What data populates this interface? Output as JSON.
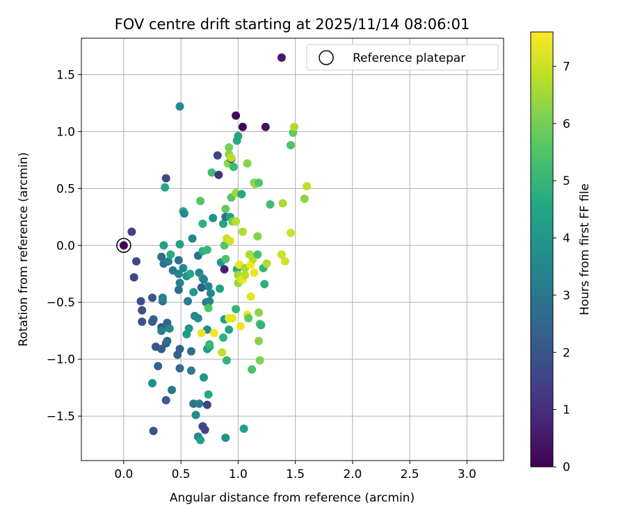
{
  "chart_data": {
    "type": "scatter",
    "title": "FOV centre drift starting at 2025/11/14 08:06:01",
    "xlabel": "Angular distance from reference (arcmin)",
    "ylabel": "Rotation from reference (arcmin)",
    "xlim": [
      -0.37,
      3.32
    ],
    "ylim": [
      -1.89,
      1.82
    ],
    "xticks": [
      0.0,
      0.5,
      1.0,
      1.5,
      2.0,
      2.5,
      3.0
    ],
    "xtick_labels": [
      "0.0",
      "0.5",
      "1.0",
      "1.5",
      "2.0",
      "2.5",
      "3.0"
    ],
    "yticks": [
      -1.5,
      -1.0,
      -0.5,
      0.0,
      0.5,
      1.0,
      1.5
    ],
    "ytick_labels": [
      "−1.5",
      "−1.0",
      "−0.5",
      "0.0",
      "0.5",
      "1.0",
      "1.5"
    ],
    "grid": true,
    "legend": {
      "position": "top-right",
      "entries": [
        "Reference platepar"
      ]
    },
    "reference_point": {
      "x": 0.0,
      "y": 0.0,
      "t": 0.0
    },
    "colorbar": {
      "label": "Hours from first FF file",
      "colormap": "viridis",
      "range": [
        0,
        7.6
      ],
      "ticks": [
        0,
        1,
        2,
        3,
        4,
        5,
        6,
        7
      ],
      "tick_labels": [
        "0",
        "1",
        "2",
        "3",
        "4",
        "5",
        "6",
        "7"
      ]
    },
    "points": [
      [
        1.38,
        1.65,
        0.5
      ],
      [
        0.98,
        1.14,
        0.1
      ],
      [
        1.04,
        1.04,
        0.0
      ],
      [
        1.24,
        1.04,
        0.3
      ],
      [
        0.49,
        1.22,
        3.6
      ],
      [
        0.37,
        0.59,
        1.7
      ],
      [
        0.07,
        0.12,
        1.4
      ],
      [
        0.11,
        -0.14,
        1.6
      ],
      [
        0.09,
        -0.28,
        1.6
      ],
      [
        0.15,
        -0.49,
        1.8
      ],
      [
        0.16,
        -0.57,
        1.8
      ],
      [
        0.16,
        -0.67,
        1.9
      ],
      [
        0.25,
        -0.46,
        2.0
      ],
      [
        0.25,
        -0.67,
        2.2
      ],
      [
        0.26,
        -0.65,
        2.3
      ],
      [
        0.28,
        -0.89,
        2.0
      ],
      [
        0.33,
        -0.72,
        2.0
      ],
      [
        0.33,
        -0.91,
        2.2
      ],
      [
        0.37,
        -0.72,
        2.4
      ],
      [
        0.37,
        -0.86,
        2.2
      ],
      [
        0.3,
        -1.06,
        2.4
      ],
      [
        0.37,
        -1.36,
        2.1
      ],
      [
        0.26,
        -1.63,
        2.0
      ],
      [
        0.42,
        -1.27,
        3.0
      ],
      [
        0.25,
        -1.21,
        3.7
      ],
      [
        0.33,
        -0.1,
        2.6
      ],
      [
        0.35,
        -0.16,
        2.9
      ],
      [
        0.34,
        -0.49,
        2.9
      ],
      [
        0.34,
        -0.46,
        3.3
      ],
      [
        0.33,
        -0.75,
        3.3
      ],
      [
        0.38,
        -0.84,
        2.6
      ],
      [
        0.38,
        -0.68,
        2.5
      ],
      [
        0.4,
        -0.73,
        3.5
      ],
      [
        0.36,
        0.51,
        4.5
      ],
      [
        0.35,
        0.0,
        4.3
      ],
      [
        0.39,
        -0.14,
        3.3
      ],
      [
        0.41,
        -0.08,
        4.7
      ],
      [
        0.43,
        -0.22,
        3.1
      ],
      [
        0.48,
        -0.13,
        2.8
      ],
      [
        0.48,
        -0.25,
        3.4
      ],
      [
        0.49,
        -0.33,
        3.3
      ],
      [
        0.48,
        -0.39,
        2.7
      ],
      [
        0.49,
        -0.91,
        2.3
      ],
      [
        0.47,
        -0.96,
        2.3
      ],
      [
        0.49,
        -1.08,
        2.6
      ],
      [
        0.49,
        0.01,
        4.3
      ],
      [
        0.52,
        0.3,
        4.6
      ],
      [
        0.53,
        0.28,
        3.6
      ],
      [
        0.52,
        -0.2,
        3.6
      ],
      [
        0.55,
        -0.27,
        3.9
      ],
      [
        0.56,
        -0.49,
        3.2
      ],
      [
        0.57,
        -0.73,
        4.0
      ],
      [
        0.55,
        -0.78,
        4.2
      ],
      [
        0.59,
        -0.93,
        2.7
      ],
      [
        0.59,
        -1.1,
        3.2
      ],
      [
        0.61,
        -1.39,
        3.0
      ],
      [
        0.63,
        -1.49,
        3.6
      ],
      [
        0.66,
        -1.39,
        3.2
      ],
      [
        0.65,
        -1.68,
        3.6
      ],
      [
        0.67,
        -1.71,
        4.3
      ],
      [
        0.6,
        0.06,
        3.5
      ],
      [
        0.58,
        -0.25,
        4.5
      ],
      [
        0.61,
        -0.41,
        4.1
      ],
      [
        0.62,
        -0.62,
        3.6
      ],
      [
        0.65,
        -0.09,
        2.8
      ],
      [
        0.66,
        -0.24,
        3.4
      ],
      [
        0.68,
        -0.37,
        2.2
      ],
      [
        0.69,
        -0.29,
        4.0
      ],
      [
        0.7,
        -0.3,
        3.3
      ],
      [
        0.69,
        -0.05,
        4.8
      ],
      [
        0.67,
        0.39,
        5.5
      ],
      [
        0.69,
        0.19,
        4.8
      ],
      [
        0.7,
        -1.16,
        4.0
      ],
      [
        0.73,
        -1.4,
        1.5
      ],
      [
        0.69,
        -1.59,
        1.5
      ],
      [
        0.71,
        -1.62,
        1.5
      ],
      [
        0.74,
        -1.31,
        4.6
      ],
      [
        0.73,
        -0.74,
        3.6
      ],
      [
        0.73,
        -0.91,
        4.1
      ],
      [
        0.72,
        -0.5,
        3.1
      ],
      [
        0.74,
        -0.36,
        3.4
      ],
      [
        0.76,
        -0.42,
        3.6
      ],
      [
        0.75,
        -0.49,
        3.4
      ],
      [
        0.74,
        -0.55,
        5.5
      ],
      [
        0.73,
        -0.04,
        5.1
      ],
      [
        0.75,
        -0.89,
        4.5
      ],
      [
        0.75,
        -0.87,
        5.1
      ],
      [
        0.77,
        0.64,
        5.2
      ],
      [
        0.78,
        0.24,
        3.8
      ],
      [
        0.82,
        0.79,
        1.5
      ],
      [
        0.83,
        0.62,
        1.1
      ],
      [
        0.84,
        -0.38,
        4.4
      ],
      [
        0.85,
        -0.15,
        4.0
      ],
      [
        0.88,
        -0.21,
        0.7
      ],
      [
        0.88,
        -0.65,
        4.2
      ],
      [
        0.87,
        -0.81,
        4.9
      ],
      [
        0.86,
        -0.94,
        6.9
      ],
      [
        0.87,
        0.19,
        4.6
      ],
      [
        0.89,
        0.25,
        2.8
      ],
      [
        0.89,
        0.32,
        5.8
      ],
      [
        0.88,
        0.0,
        5.5
      ],
      [
        0.89,
        -0.12,
        5.4
      ],
      [
        0.89,
        -1.69,
        3.8
      ],
      [
        0.9,
        -1.01,
        4.9
      ],
      [
        0.9,
        0.06,
        7.0
      ],
      [
        0.91,
        0.72,
        6.3
      ],
      [
        0.92,
        0.86,
        6.0
      ],
      [
        0.94,
        0.76,
        1.5
      ],
      [
        0.93,
        0.04,
        7.1
      ],
      [
        0.92,
        -0.64,
        7.3
      ],
      [
        0.92,
        -0.74,
        4.5
      ],
      [
        0.92,
        0.8,
        6.3
      ],
      [
        0.94,
        0.77,
        6.8
      ],
      [
        0.96,
        0.69,
        5.1
      ],
      [
        0.94,
        0.42,
        5.6
      ],
      [
        0.93,
        0.25,
        4.4
      ],
      [
        0.95,
        0.21,
        5.9
      ],
      [
        0.98,
        0.21,
        6.8
      ],
      [
        0.98,
        0.46,
        6.5
      ],
      [
        0.99,
        -0.21,
        4.7
      ],
      [
        0.98,
        -0.56,
        5.0
      ],
      [
        0.99,
        0.92,
        4.7
      ],
      [
        1.0,
        0.96,
        4.4
      ],
      [
        1.0,
        -0.26,
        6.5
      ],
      [
        1.0,
        -0.33,
        6.4
      ],
      [
        1.01,
        -0.17,
        7.4
      ],
      [
        1.02,
        -0.3,
        6.9
      ],
      [
        1.02,
        -0.71,
        7.4
      ],
      [
        1.03,
        0.45,
        4.6
      ],
      [
        1.04,
        0.12,
        6.7
      ],
      [
        1.04,
        -0.3,
        7.4
      ],
      [
        1.06,
        -0.2,
        6.6
      ],
      [
        1.06,
        -0.26,
        6.8
      ],
      [
        1.08,
        -0.61,
        7.3
      ],
      [
        1.08,
        0.72,
        6.2
      ],
      [
        1.09,
        -0.64,
        5.7
      ],
      [
        1.1,
        -0.08,
        6.6
      ],
      [
        1.11,
        -0.17,
        7.5
      ],
      [
        1.11,
        -0.45,
        7.3
      ],
      [
        1.12,
        -1.09,
        5.4
      ],
      [
        1.13,
        -0.12,
        6.8
      ],
      [
        1.14,
        -0.24,
        7.4
      ],
      [
        1.14,
        0.55,
        6.0
      ],
      [
        1.15,
        0.54,
        6.4
      ],
      [
        1.17,
        0.08,
        6.2
      ],
      [
        1.17,
        -0.08,
        5.4
      ],
      [
        1.18,
        -0.59,
        6.3
      ],
      [
        1.19,
        -0.69,
        5.6
      ],
      [
        1.18,
        -0.84,
        6.2
      ],
      [
        1.19,
        -1.01,
        6.1
      ],
      [
        1.18,
        0.55,
        5.5
      ],
      [
        1.2,
        -0.7,
        4.9
      ],
      [
        1.22,
        -0.2,
        5.0
      ],
      [
        1.23,
        -0.34,
        4.8
      ],
      [
        1.25,
        -0.16,
        6.7
      ],
      [
        1.28,
        0.36,
        5.3
      ],
      [
        1.38,
        -0.08,
        7.0
      ],
      [
        1.39,
        0.37,
        6.6
      ],
      [
        1.41,
        -0.14,
        7.1
      ],
      [
        1.46,
        0.88,
        5.5
      ],
      [
        1.48,
        0.99,
        5.7
      ],
      [
        1.49,
        1.04,
        6.7
      ],
      [
        1.46,
        0.11,
        7.0
      ],
      [
        1.58,
        0.41,
        6.3
      ],
      [
        1.6,
        0.52,
        6.9
      ],
      [
        0.68,
        -0.77,
        7.4
      ],
      [
        0.79,
        -0.77,
        7.5
      ],
      [
        0.95,
        -0.64,
        7.3
      ],
      [
        0.65,
        -0.64,
        3.5
      ],
      [
        1.05,
        -1.61,
        4.3
      ],
      [
        0.0,
        0.0,
        0.0
      ]
    ]
  }
}
